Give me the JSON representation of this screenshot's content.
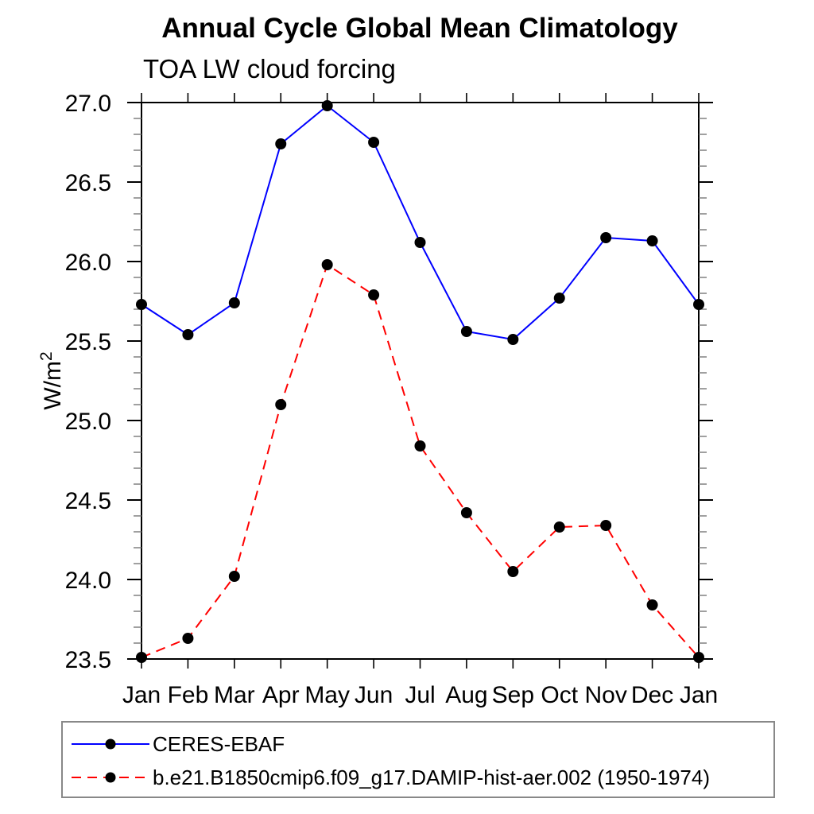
{
  "chart_data": {
    "type": "line",
    "title": "Annual Cycle Global Mean Climatology",
    "subtitle": "TOA LW cloud forcing",
    "ylabel": {
      "main": "W/m",
      "sup": "2"
    },
    "x_tick_labels": [
      "Jan",
      "Feb",
      "Mar",
      "Apr",
      "May",
      "Jun",
      "Jul",
      "Aug",
      "Sep",
      "Oct",
      "Nov",
      "Dec",
      "Jan"
    ],
    "ylim": [
      23.5,
      27.0
    ],
    "y_major_tick_values": [
      23.5,
      24.0,
      24.5,
      25.0,
      25.5,
      26.0,
      26.5,
      27.0
    ],
    "y_major_tick_labels": [
      "23.5",
      "24.0",
      "24.5",
      "25.0",
      "25.5",
      "26.0",
      "26.5",
      "27.0"
    ],
    "y_minor_step": 0.1,
    "grid": false,
    "legend_position": "bottom",
    "colors": {
      "axis": "#000000",
      "minor_tick": "#777777",
      "legend_border": "#888888",
      "marker": "#000000"
    },
    "series": [
      {
        "name": "CERES-EBAF",
        "line_color": "#0000ff",
        "line_style": "solid",
        "marker": "dot",
        "marker_color": "#000000",
        "values": [
          25.73,
          25.54,
          25.74,
          26.74,
          26.98,
          26.75,
          26.12,
          25.56,
          25.51,
          25.77,
          26.15,
          26.13,
          25.73
        ]
      },
      {
        "name": "b.e21.B1850cmip6.f09_g17.DAMIP-hist-aer.002 (1950-1974)",
        "line_color": "#ff0000",
        "line_style": "dashed",
        "marker": "dot",
        "marker_color": "#000000",
        "values": [
          23.51,
          23.63,
          24.02,
          25.1,
          25.98,
          25.79,
          24.84,
          24.42,
          24.05,
          24.33,
          24.34,
          23.84,
          23.51
        ]
      }
    ]
  }
}
